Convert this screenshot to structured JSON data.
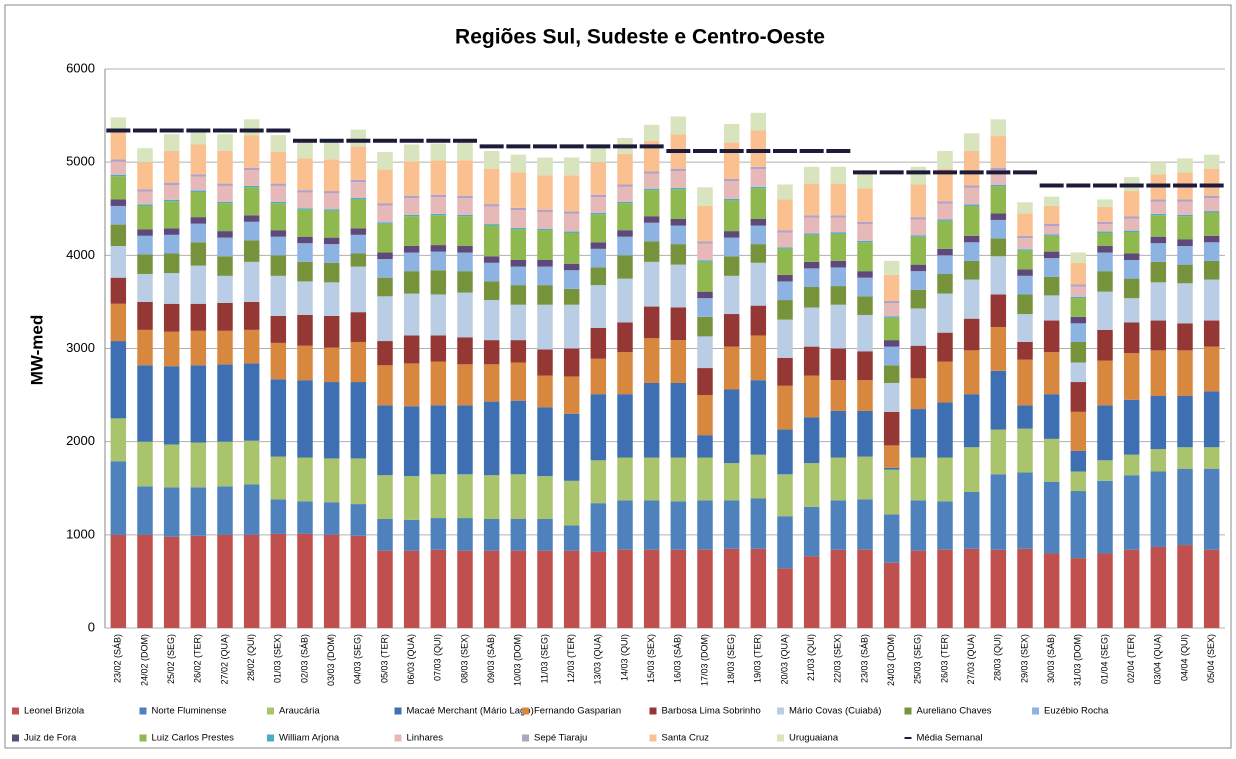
{
  "chart_data": {
    "type": "stacked_bar",
    "title": "Regiões Sul, Sudeste e Centro-Oeste",
    "y_label": "MW-med",
    "categories": [
      "23/02 (SÁB)",
      "24/02 (DOM)",
      "25/02 (SEG)",
      "26/02 (TER)",
      "27/02 (QUA)",
      "28/02 (QUI)",
      "01/03 (SEX)",
      "02/03 (SÁB)",
      "03/03 (DOM)",
      "04/03 (SEG)",
      "05/03 (TER)",
      "06/03 (QUA)",
      "07/03 (QUI)",
      "08/03 (SEX)",
      "09/03 (SÁB)",
      "10/03 (DOM)",
      "11/03 (SEG)",
      "12/03 (TER)",
      "13/03 (QUA)",
      "14/03 (QUI)",
      "15/03 (SEX)",
      "16/03 (SÁB)",
      "17/03 (DOM)",
      "18/03 (SEG)",
      "19/03 (TER)",
      "20/03 (QUA)",
      "21/03 (QUI)",
      "22/03 (SEX)",
      "23/03 (SÁB)",
      "24/03 (DOM)",
      "25/03 (SEG)",
      "26/03 (TER)",
      "27/03 (QUA)",
      "28/03 (QUI)",
      "29/03 (SEX)",
      "30/03 (SÁB)",
      "31/03 (DOM)",
      "01/04 (SEG)",
      "02/04 (TER)",
      "03/04 (QUA)",
      "04/04 (QUI)",
      "05/04 (SEX)"
    ],
    "ylim": [
      0,
      6000
    ],
    "yticks": [
      0,
      1000,
      2000,
      3000,
      4000,
      5000,
      6000
    ],
    "grid": true,
    "series": [
      {
        "name": "Leonel Brizola",
        "color": "#c0504d",
        "values": [
          1000,
          1000,
          980,
          990,
          1000,
          1000,
          1010,
          1010,
          1000,
          990,
          830,
          830,
          840,
          830,
          830,
          830,
          830,
          830,
          820,
          840,
          840,
          840,
          840,
          850,
          850,
          640,
          770,
          840,
          840,
          700,
          830,
          840,
          850,
          840,
          850,
          800,
          750,
          800,
          840,
          870,
          890,
          840
        ]
      },
      {
        "name": "Norte Fluminense",
        "color": "#4f81bd",
        "values": [
          790,
          520,
          530,
          520,
          520,
          540,
          370,
          350,
          350,
          340,
          340,
          330,
          340,
          350,
          340,
          340,
          340,
          270,
          520,
          530,
          530,
          520,
          530,
          520,
          540,
          560,
          530,
          530,
          540,
          520,
          540,
          520,
          610,
          810,
          820,
          770,
          720,
          780,
          800,
          810,
          820,
          870
        ]
      },
      {
        "name": "Araucária",
        "color": "#a9c46c",
        "values": [
          460,
          480,
          460,
          480,
          480,
          470,
          460,
          470,
          470,
          490,
          470,
          470,
          470,
          470,
          470,
          480,
          460,
          480,
          460,
          460,
          460,
          470,
          460,
          400,
          470,
          450,
          470,
          460,
          460,
          480,
          460,
          470,
          480,
          480,
          470,
          460,
          210,
          220,
          220,
          240,
          230,
          230
        ]
      },
      {
        "name": "Macaé Merchant (Mário Lago)",
        "color": "#3f6fb3",
        "values": [
          830,
          820,
          840,
          830,
          830,
          830,
          830,
          830,
          820,
          820,
          750,
          750,
          740,
          740,
          790,
          790,
          740,
          720,
          710,
          680,
          800,
          800,
          240,
          790,
          800,
          480,
          490,
          500,
          490,
          20,
          520,
          590,
          570,
          630,
          250,
          480,
          220,
          590,
          590,
          570,
          550,
          600
        ]
      },
      {
        "name": "Fernando Gasparian",
        "color": "#d8883e",
        "values": [
          400,
          380,
          370,
          370,
          360,
          360,
          390,
          370,
          370,
          430,
          430,
          460,
          470,
          440,
          400,
          410,
          340,
          400,
          380,
          450,
          480,
          460,
          430,
          460,
          480,
          470,
          450,
          330,
          330,
          240,
          330,
          440,
          470,
          470,
          490,
          450,
          420,
          480,
          500,
          490,
          490,
          480
        ]
      },
      {
        "name": "Barbosa Lima Sobrinho",
        "color": "#953735",
        "values": [
          280,
          300,
          300,
          290,
          300,
          300,
          290,
          330,
          340,
          320,
          260,
          300,
          280,
          290,
          260,
          240,
          280,
          300,
          330,
          320,
          340,
          350,
          290,
          350,
          320,
          300,
          310,
          340,
          310,
          360,
          350,
          310,
          340,
          350,
          190,
          340,
          320,
          330,
          330,
          320,
          290,
          280
        ]
      },
      {
        "name": "Mário Covas (Cuiabá)",
        "color": "#b9cde5",
        "values": [
          340,
          300,
          330,
          410,
          290,
          430,
          430,
          360,
          360,
          490,
          480,
          450,
          440,
          480,
          430,
          380,
          480,
          470,
          460,
          470,
          480,
          460,
          340,
          410,
          460,
          410,
          420,
          470,
          390,
          310,
          400,
          420,
          420,
          410,
          300,
          270,
          210,
          410,
          260,
          410,
          430,
          440
        ]
      },
      {
        "name": "Aureliano Chaves",
        "color": "#77933c",
        "values": [
          230,
          210,
          210,
          250,
          210,
          230,
          220,
          210,
          210,
          140,
          200,
          240,
          260,
          230,
          200,
          210,
          210,
          170,
          190,
          250,
          220,
          220,
          210,
          210,
          200,
          210,
          220,
          200,
          200,
          190,
          200,
          210,
          200,
          190,
          210,
          200,
          220,
          220,
          210,
          220,
          200,
          200
        ]
      },
      {
        "name": "Euzébio Rocha",
        "color": "#8db3e2",
        "values": [
          200,
          200,
          200,
          200,
          200,
          200,
          200,
          200,
          200,
          200,
          200,
          200,
          200,
          200,
          200,
          200,
          200,
          200,
          200,
          200,
          200,
          200,
          200,
          200,
          200,
          200,
          200,
          200,
          200,
          200,
          200,
          200,
          200,
          200,
          200,
          200,
          200,
          200,
          200,
          200,
          200,
          200
        ]
      },
      {
        "name": "Juiz de Fora",
        "color": "#5f497a",
        "values": [
          70,
          70,
          70,
          70,
          70,
          70,
          70,
          70,
          70,
          70,
          70,
          70,
          70,
          70,
          70,
          70,
          70,
          70,
          70,
          70,
          70,
          70,
          70,
          70,
          70,
          70,
          70,
          70,
          70,
          70,
          70,
          70,
          70,
          70,
          70,
          70,
          70,
          70,
          70,
          70,
          70,
          70
        ]
      },
      {
        "name": "Luiz Carlos Prestes",
        "color": "#8fb84f",
        "values": [
          250,
          250,
          290,
          270,
          300,
          300,
          290,
          290,
          290,
          310,
          310,
          320,
          320,
          320,
          330,
          330,
          320,
          330,
          300,
          290,
          280,
          320,
          320,
          330,
          330,
          280,
          290,
          290,
          310,
          240,
          300,
          300,
          320,
          290,
          200,
          170,
          200,
          140,
          230,
          230,
          250,
          250
        ]
      },
      {
        "name": "William Arjona",
        "color": "#4bacc6",
        "values": [
          15,
          15,
          15,
          15,
          15,
          15,
          15,
          15,
          15,
          15,
          15,
          15,
          15,
          15,
          15,
          15,
          15,
          15,
          15,
          15,
          15,
          15,
          15,
          15,
          15,
          15,
          15,
          15,
          15,
          15,
          15,
          15,
          15,
          15,
          15,
          15,
          15,
          15,
          15,
          15,
          15,
          15
        ]
      },
      {
        "name": "Linhares",
        "color": "#e6b9b8",
        "values": [
          140,
          140,
          160,
          150,
          170,
          170,
          170,
          170,
          170,
          170,
          180,
          180,
          180,
          180,
          190,
          190,
          180,
          190,
          170,
          160,
          160,
          180,
          180,
          190,
          190,
          160,
          170,
          160,
          180,
          140,
          170,
          170,
          180,
          160,
          120,
          90,
          110,
          80,
          130,
          130,
          140,
          140
        ]
      },
      {
        "name": "Sepé Tiaraju",
        "color": "#b3a2c7",
        "values": [
          25,
          25,
          25,
          25,
          25,
          25,
          25,
          25,
          25,
          25,
          25,
          25,
          25,
          25,
          25,
          25,
          25,
          25,
          25,
          25,
          25,
          25,
          25,
          25,
          25,
          25,
          25,
          25,
          25,
          25,
          25,
          25,
          25,
          25,
          25,
          25,
          25,
          25,
          25,
          25,
          25,
          25
        ]
      },
      {
        "name": "Santa Cruz",
        "color": "#fac090",
        "values": [
          290,
          290,
          340,
          320,
          350,
          350,
          340,
          340,
          340,
          360,
          360,
          370,
          370,
          380,
          380,
          380,
          370,
          390,
          350,
          330,
          330,
          370,
          380,
          390,
          390,
          330,
          340,
          340,
          360,
          280,
          350,
          350,
          370,
          340,
          240,
          190,
          230,
          160,
          270,
          270,
          290,
          290
        ]
      },
      {
        "name": "Uruguaiana",
        "color": "#d7e4bd",
        "values": [
          160,
          150,
          180,
          170,
          180,
          170,
          180,
          180,
          180,
          180,
          190,
          180,
          180,
          190,
          190,
          190,
          190,
          190,
          170,
          170,
          170,
          190,
          200,
          200,
          190,
          160,
          180,
          180,
          180,
          150,
          190,
          190,
          190,
          180,
          120,
          100,
          110,
          80,
          150,
          130,
          150,
          150
        ]
      }
    ],
    "lines": [
      {
        "name": "Média Semanal",
        "color": "#1c1c3a",
        "values": [
          5340,
          5340,
          5340,
          5340,
          5340,
          5340,
          5340,
          5230,
          5230,
          5230,
          5230,
          5230,
          5230,
          5230,
          5170,
          5170,
          5170,
          5170,
          5170,
          5170,
          5170,
          5120,
          5120,
          5120,
          5120,
          5120,
          5120,
          5120,
          4890,
          4890,
          4890,
          4890,
          4890,
          4890,
          4890,
          4750,
          4750,
          4750,
          4750,
          4750,
          4750,
          4750
        ]
      }
    ]
  }
}
